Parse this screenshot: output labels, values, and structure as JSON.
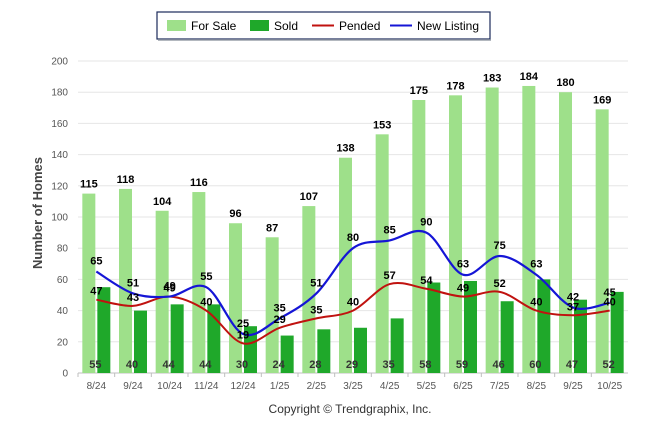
{
  "chart_data": {
    "type": "bar",
    "categories": [
      "8/24",
      "9/24",
      "10/24",
      "11/24",
      "12/24",
      "1/25",
      "2/25",
      "3/25",
      "4/25",
      "5/25",
      "6/25",
      "7/25",
      "8/25",
      "9/25",
      "10/25"
    ],
    "series": [
      {
        "name": "For Sale",
        "kind": "bar",
        "color": "#9ee08a",
        "values": [
          115,
          118,
          104,
          116,
          96,
          87,
          107,
          138,
          153,
          175,
          178,
          183,
          184,
          180,
          169
        ]
      },
      {
        "name": "Sold",
        "kind": "bar",
        "color": "#1fa82a",
        "values": [
          55,
          40,
          44,
          44,
          30,
          24,
          28,
          29,
          35,
          58,
          59,
          46,
          60,
          47,
          52
        ]
      },
      {
        "name": "Pended",
        "kind": "line",
        "color": "#c0120f",
        "values": [
          47,
          43,
          49,
          40,
          19,
          29,
          35,
          40,
          57,
          54,
          49,
          52,
          40,
          37,
          40
        ]
      },
      {
        "name": "New Listing",
        "kind": "line",
        "color": "#1515d6",
        "values": [
          65,
          51,
          49,
          55,
          25,
          35,
          51,
          80,
          85,
          90,
          63,
          75,
          63,
          42,
          45
        ]
      }
    ],
    "ylabel": "Number of Homes",
    "xlabel": "",
    "ylim": [
      0,
      200
    ],
    "yticks": [
      0,
      20,
      40,
      60,
      80,
      100,
      120,
      140,
      160,
      180,
      200
    ],
    "grid": true,
    "legend_position": "top-center",
    "credit": "Copyright © Trendgraphix, Inc."
  }
}
